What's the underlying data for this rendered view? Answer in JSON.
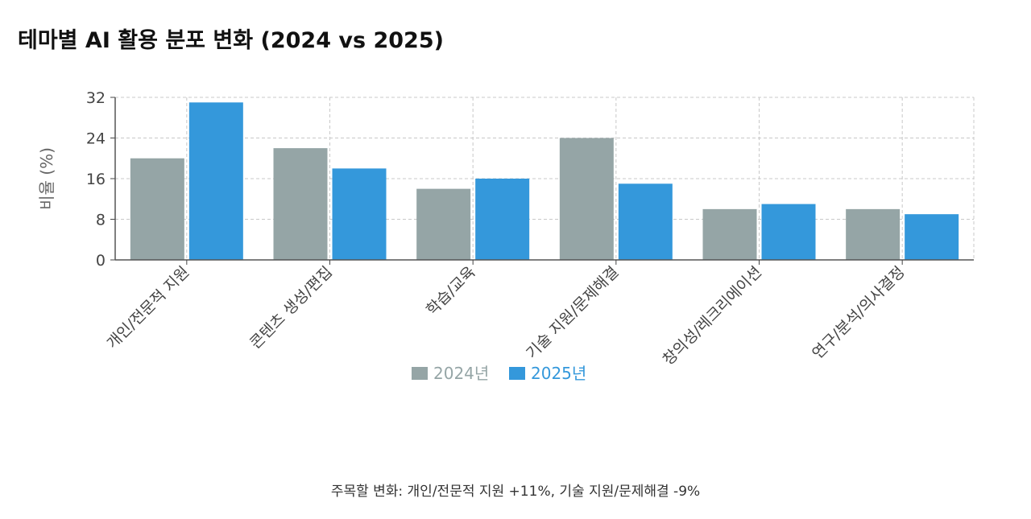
{
  "page": {
    "title": "테마별 AI 활용 분포 변화 (2024 vs 2025)",
    "footnote": "주목할 변화: 개인/전문적 지원 +11%, 기술 지원/문제해결 -9%"
  },
  "chart_data": {
    "type": "bar",
    "title": "테마별 AI 활용 분포 변화 (2024 vs 2025)",
    "xlabel": "",
    "ylabel": "비율 (%)",
    "ylim": [
      0,
      32
    ],
    "yticks": [
      0,
      8,
      16,
      24,
      32
    ],
    "grid": true,
    "legend_position": "bottom-center",
    "categories": [
      "개인/전문적 지원",
      "콘텐츠 생성/편집",
      "학습/교육",
      "기술 지원/문제해결",
      "창의성/레크리에이션",
      "연구/분석/의사결정"
    ],
    "series": [
      {
        "name": "2024년",
        "color": "#95a5a6",
        "values": [
          20,
          22,
          14,
          24,
          10,
          10
        ]
      },
      {
        "name": "2025년",
        "color": "#3498db",
        "values": [
          31,
          18,
          16,
          15,
          11,
          9
        ]
      }
    ]
  }
}
